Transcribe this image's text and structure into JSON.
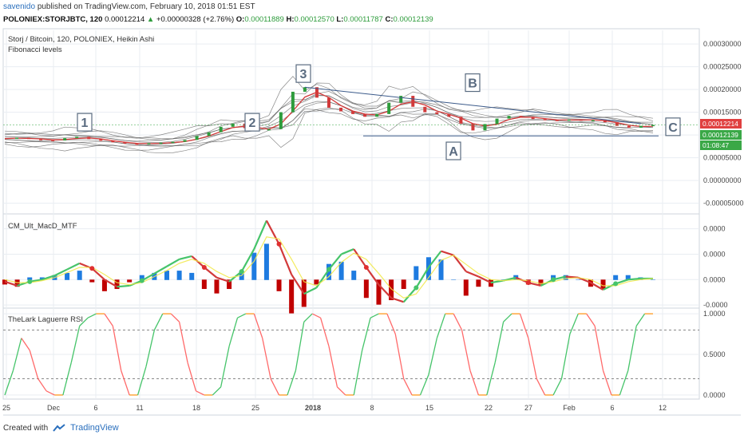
{
  "header": {
    "user": "savenido",
    "published_text": "published on TradingView.com, February 10, 2018 01:51 EST",
    "symbol": "POLONIEX:STORJBTC, 120",
    "last": "0.00012214",
    "change": "+0.00000328 (+2.76%)",
    "o_label": "O:",
    "o": "0.00011889",
    "h_label": "H:",
    "h": "0.00012570",
    "l_label": "L:",
    "l": "0.00011787",
    "c_label": "C:",
    "c": "0.00012139"
  },
  "footer": {
    "created_with": "Created with",
    "brand": "TradingView"
  },
  "colors": {
    "grid": "#e9edf2",
    "sep": "#cfd5dc",
    "axis_text": "#444444",
    "ha_up": "#2e9c3c",
    "ha_down": "#d23a3a",
    "ribbon": "#555555",
    "fib_line": "#3b5a8a",
    "price_green": "#3aa847",
    "price_red": "#e04040",
    "macd_pos": "#1e7be0",
    "macd_neg": "#c00000",
    "rsi_up": "#46c46a",
    "rsi_down": "#ff6a6a",
    "rsi_flat": "#ff9a1f",
    "level": "#888888"
  },
  "chart_data": [
    {
      "type": "line",
      "title": "Storj / Bitcoin, 120, POLONIEX, Heikin Ashi",
      "subtitle": "Fibonacci levels",
      "x_ticks": [
        "25",
        "Dec",
        "6",
        "11",
        "18",
        "25",
        "2018",
        "8",
        "15",
        "22",
        "27",
        "Feb",
        "6",
        "12"
      ],
      "y_ticks": [
        "0.00030000",
        "0.00025000",
        "0.00020000",
        "0.00015000",
        "0.00010000",
        "0.00005000",
        "0.00000000",
        "-0.00005000"
      ],
      "ylim": [
        -7e-05,
        0.00033
      ],
      "series": [
        {
          "values": [
            9.2e-05,
            9.4e-05,
            9.1e-05,
            8.9e-05,
            8.8e-05,
            9.3e-05,
            9.6e-05,
            9.1e-05,
            8.7e-05,
            8.4e-05,
            8.1e-05,
            8e-05,
            8.2e-05,
            8.3e-05,
            8.5e-05,
            8.9e-05,
            9.8e-05,
            0.000106,
            0.000118,
            0.000125,
            0.000115,
            0.00011,
            0.000113,
            0.00015,
            0.000195,
            0.000205,
            0.000182,
            0.00016,
            0.000152,
            0.000146,
            0.00014,
            0.000146,
            0.000171,
            0.000186,
            0.000162,
            0.00015,
            0.000146,
            0.00014,
            0.000125,
            0.00011,
            0.000124,
            0.000136,
            0.000142,
            0.00014,
            0.000135,
            0.000133,
            0.000132,
            0.000134,
            0.000133,
            0.000133,
            0.000128,
            0.00012,
            0.000116,
            0.00012,
            0.000122
          ]
        }
      ],
      "price_labels": [
        "0.00012214",
        "0.00012139",
        "01:08:47"
      ],
      "wave_labels": [
        "1",
        "2",
        "3",
        "A",
        "B",
        "C"
      ]
    },
    {
      "type": "bar",
      "title": "CM_Ult_MacD_MTF",
      "y_ticks": [
        "0.0000",
        "0.0000",
        "0.0000",
        "-0.0000"
      ],
      "ylim": [
        -2.8e-05,
        6.3e-05
      ],
      "macd": [
        -2e-06,
        -6e-06,
        -2e-06,
        0.0,
        4e-06,
        1e-05,
        1.6e-05,
        1.1e-05,
        0.0,
        -7e-06,
        -6e-06,
        -1e-06,
        6e-06,
        1.3e-05,
        2e-05,
        2.3e-05,
        1.2e-05,
        2e-06,
        -2e-06,
        8e-06,
        3e-05,
        5.8e-05,
        3.5e-05,
        5e-06,
        -1.4e-05,
        -8e-06,
        1e-05,
        2.5e-05,
        3e-05,
        1.2e-05,
        -5e-06,
        -1.8e-05,
        -2.2e-05,
        -8e-06,
        1.2e-05,
        2.8e-05,
        2.4e-05,
        8e-06,
        3e-06,
        -3e-06,
        -1e-06,
        2e-06,
        -3e-06,
        -6e-06,
        0.0,
        3e-06,
        2e-06,
        -3e-06,
        -1e-05,
        -4e-06,
        0.0,
        1e-06,
        1e-06
      ],
      "signal": [
        0.0,
        -3e-06,
        -3e-06,
        -1e-06,
        2e-06,
        7e-06,
        1.2e-05,
        1.2e-05,
        5e-06,
        -3e-06,
        -5e-06,
        -3e-06,
        3e-06,
        9e-06,
        1.6e-05,
        2e-05,
        1.6e-05,
        8e-06,
        2e-06,
        4e-06,
        1.8e-05,
        4.2e-05,
        4e-05,
        2e-05,
        -2e-06,
        -6e-06,
        3e-06,
        1.7e-05,
        2.6e-05,
        2e-05,
        6e-06,
        -9e-06,
        -1.8e-05,
        -1.4e-05,
        2e-06,
        1.9e-05,
        2.4e-05,
        1.5e-05,
        6e-06,
        0.0,
        -1e-06,
        0.0,
        -1e-06,
        -4e-06,
        -2e-06,
        1e-06,
        2e-06,
        0.0,
        -6e-06,
        -6e-06,
        -2e-06,
        0.0,
        1e-06
      ]
    },
    {
      "type": "line",
      "title": "TheLark Laguerre RSI",
      "y_ticks": [
        "1.0000",
        "0.5000",
        "0.0000"
      ],
      "ylim": [
        -0.05,
        1.05
      ],
      "levels": [
        0.8,
        0.2
      ],
      "values": [
        0.0,
        0.3,
        0.7,
        0.55,
        0.2,
        0.05,
        0.0,
        0.0,
        0.4,
        0.85,
        0.95,
        1.0,
        1.0,
        0.85,
        0.3,
        0.0,
        0.0,
        0.35,
        0.8,
        1.0,
        1.0,
        0.9,
        0.4,
        0.05,
        0.0,
        0.0,
        0.1,
        0.6,
        0.95,
        1.0,
        1.0,
        0.7,
        0.2,
        0.0,
        0.0,
        0.3,
        0.9,
        1.0,
        0.95,
        0.6,
        0.1,
        0.0,
        0.0,
        0.55,
        0.95,
        1.0,
        1.0,
        0.75,
        0.2,
        0.0,
        0.0,
        0.25,
        0.7,
        1.0,
        1.0,
        0.8,
        0.3,
        0.0,
        0.0,
        0.4,
        0.9,
        1.0,
        1.0,
        0.7,
        0.2,
        0.0,
        0.0,
        0.2,
        0.75,
        1.0,
        1.0,
        0.85,
        0.3,
        0.0,
        0.0,
        0.3,
        0.85,
        1.0,
        1.0
      ]
    }
  ]
}
